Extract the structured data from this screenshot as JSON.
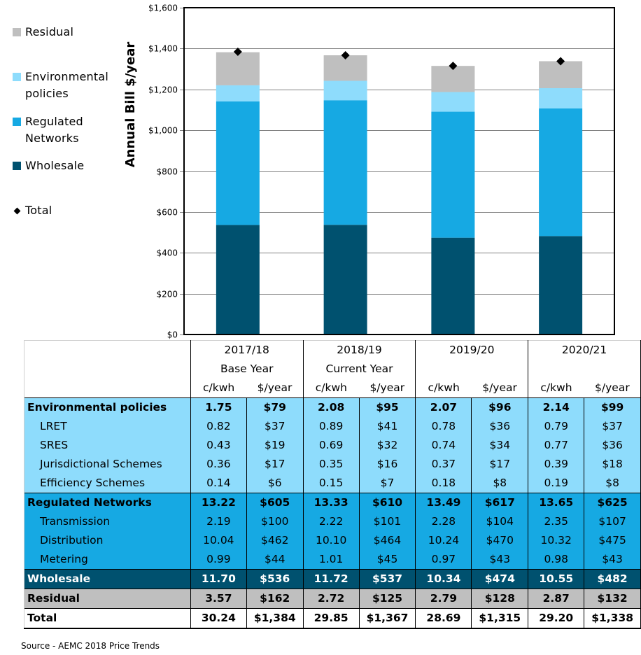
{
  "chart_data": {
    "type": "bar",
    "stacked": true,
    "title": "",
    "xlabel": "",
    "ylabel": "Annual Bill $/year",
    "ylim": [
      0,
      1600
    ],
    "yticks": [
      0,
      200,
      400,
      600,
      800,
      1000,
      1200,
      1400,
      1600
    ],
    "ytick_labels": [
      "$0",
      "$200",
      "$400",
      "$600",
      "$800",
      "$1,000",
      "$1,200",
      "$1,400",
      "$1,600"
    ],
    "grid": true,
    "legend_position": "left",
    "categories": [
      "2017/18",
      "2018/19",
      "2019/20",
      "2020/21"
    ],
    "series": [
      {
        "name": "Wholesale",
        "color": "#00516f",
        "values": [
          536,
          537,
          474,
          482
        ]
      },
      {
        "name": "Regulated Networks",
        "color": "#16a9e3",
        "values": [
          605,
          610,
          617,
          625
        ]
      },
      {
        "name": "Environmental policies",
        "color": "#8edcfc",
        "values": [
          79,
          95,
          96,
          99
        ]
      },
      {
        "name": "Residual",
        "color": "#bfbfbf",
        "values": [
          162,
          125,
          128,
          132
        ]
      }
    ],
    "markers": {
      "name": "Total",
      "type": "diamond",
      "color": "#000000",
      "values": [
        1384,
        1367,
        1315,
        1338
      ]
    }
  },
  "legend": {
    "items": [
      {
        "label": "Residual",
        "color": "#bfbfbf",
        "kind": "swatch"
      },
      {
        "label": "Environmental policies",
        "color": "#8edcfc",
        "kind": "swatch"
      },
      {
        "label": "Regulated Networks",
        "color": "#16a9e3",
        "kind": "swatch"
      },
      {
        "label": "Wholesale",
        "color": "#00516f",
        "kind": "swatch"
      },
      {
        "label": "Total",
        "color": "#000000",
        "kind": "diamond"
      }
    ]
  },
  "table": {
    "years": [
      {
        "year": "2017/18",
        "note": "Base Year"
      },
      {
        "year": "2018/19",
        "note": "Current Year"
      },
      {
        "year": "2019/20",
        "note": ""
      },
      {
        "year": "2020/21",
        "note": ""
      }
    ],
    "unit_headers": [
      "c/kwh",
      "$/year",
      "c/kwh",
      "$/year",
      "c/kwh",
      "$/year",
      "c/kwh",
      "$/year"
    ],
    "rows": [
      {
        "label": "Environmental policies",
        "group": "env",
        "bold": true,
        "sub": false,
        "values": [
          "1.75",
          "$79",
          "2.08",
          "$95",
          "2.07",
          "$96",
          "2.14",
          "$99"
        ]
      },
      {
        "label": "LRET",
        "group": "env",
        "bold": false,
        "sub": true,
        "values": [
          "0.82",
          "$37",
          "0.89",
          "$41",
          "0.78",
          "$36",
          "0.79",
          "$37"
        ]
      },
      {
        "label": "SRES",
        "group": "env",
        "bold": false,
        "sub": true,
        "values": [
          "0.43",
          "$19",
          "0.69",
          "$32",
          "0.74",
          "$34",
          "0.77",
          "$36"
        ]
      },
      {
        "label": "Jurisdictional Schemes",
        "group": "env",
        "bold": false,
        "sub": true,
        "values": [
          "0.36",
          "$17",
          "0.35",
          "$16",
          "0.37",
          "$17",
          "0.39",
          "$18"
        ]
      },
      {
        "label": "Efficiency Schemes",
        "group": "env",
        "bold": false,
        "sub": true,
        "values": [
          "0.14",
          "$6",
          "0.15",
          "$7",
          "0.18",
          "$8",
          "0.19",
          "$8"
        ]
      },
      {
        "label": "Regulated Networks",
        "group": "reg",
        "bold": true,
        "sub": false,
        "values": [
          "13.22",
          "$605",
          "13.33",
          "$610",
          "13.49",
          "$617",
          "13.65",
          "$625"
        ]
      },
      {
        "label": "Transmission",
        "group": "reg",
        "bold": false,
        "sub": true,
        "values": [
          "2.19",
          "$100",
          "2.22",
          "$101",
          "2.28",
          "$104",
          "2.35",
          "$107"
        ]
      },
      {
        "label": "Distribution",
        "group": "reg",
        "bold": false,
        "sub": true,
        "values": [
          "10.04",
          "$462",
          "10.10",
          "$464",
          "10.24",
          "$470",
          "10.32",
          "$475"
        ]
      },
      {
        "label": "Metering",
        "group": "reg",
        "bold": false,
        "sub": true,
        "values": [
          "0.99",
          "$44",
          "1.01",
          "$45",
          "0.97",
          "$43",
          "0.98",
          "$43"
        ]
      },
      {
        "label": "Wholesale",
        "group": "whl",
        "bold": true,
        "sub": false,
        "values": [
          "11.70",
          "$536",
          "11.72",
          "$537",
          "10.34",
          "$474",
          "10.55",
          "$482"
        ]
      },
      {
        "label": "Residual",
        "group": "res",
        "bold": true,
        "sub": false,
        "values": [
          "3.57",
          "$162",
          "2.72",
          "$125",
          "2.79",
          "$128",
          "2.87",
          "$132"
        ]
      },
      {
        "label": "Total",
        "group": "tot",
        "bold": true,
        "sub": false,
        "values": [
          "30.24",
          "$1,384",
          "29.85",
          "$1,367",
          "28.69",
          "$1,315",
          "29.20",
          "$1,338"
        ]
      }
    ]
  },
  "source": "Source - AEMC 2018 Price Trends"
}
